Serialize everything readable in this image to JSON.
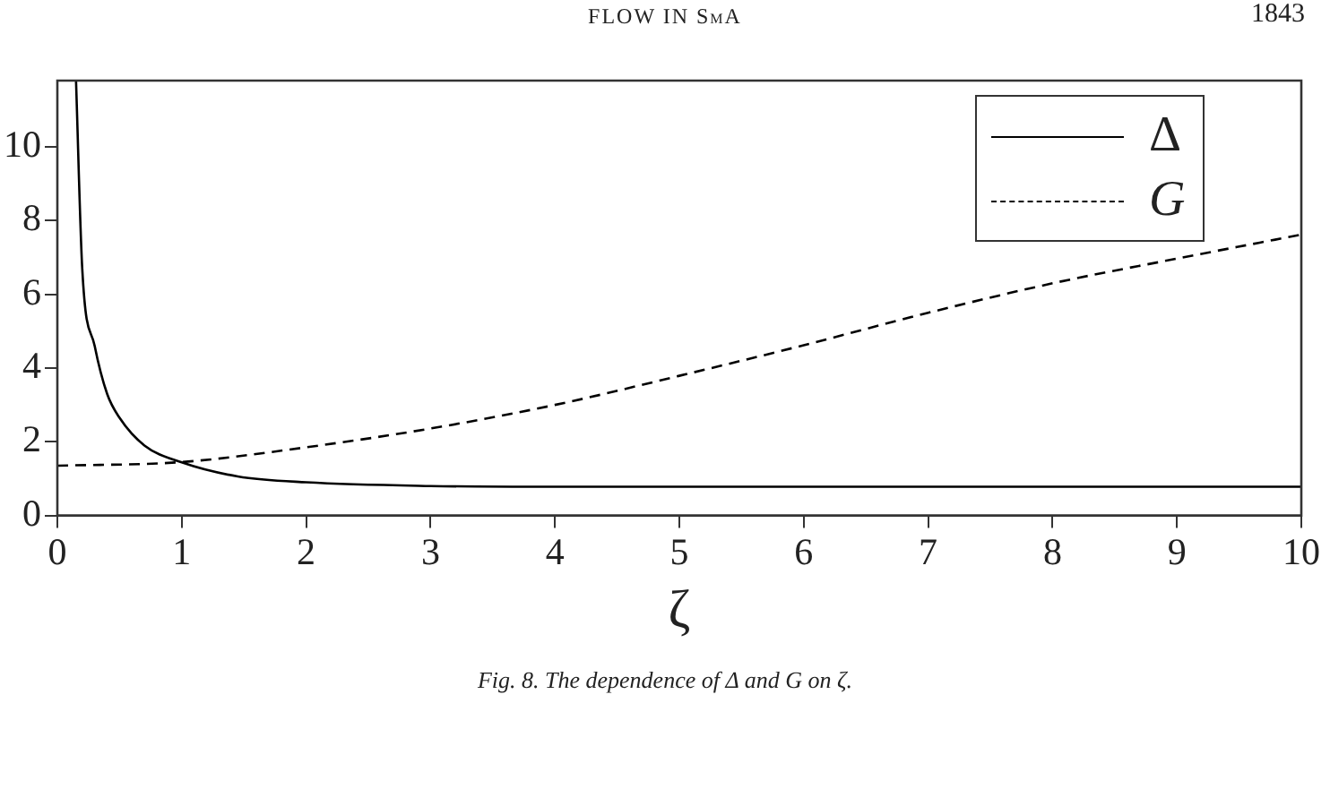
{
  "chart_data": {
    "type": "line",
    "xlabel": "ζ",
    "xlim": [
      0,
      10
    ],
    "xticks": [
      0,
      1,
      2,
      3,
      4,
      5,
      6,
      7,
      8,
      9,
      10
    ],
    "ylim": [
      0,
      11.8
    ],
    "yticks": [
      0,
      2,
      4,
      6,
      8,
      10
    ],
    "grid": false,
    "legend": "top right",
    "marker": "none",
    "annotations": [
      "FLOW IN SmA",
      "1843",
      "Fig. 8. The dependence of Δ and G on ζ."
    ],
    "series": [
      {
        "name": "Δ",
        "color": "#000000",
        "line_style": "solid",
        "x": [
          0.15,
          0.2,
          0.3,
          0.4,
          0.5,
          0.7,
          1,
          1.45,
          2,
          3,
          4,
          6,
          8,
          10
        ],
        "values": [
          11.8,
          6.7,
          4.6,
          3.3,
          2.65,
          1.9,
          1.44,
          1.06,
          0.9,
          0.8,
          0.78,
          0.78,
          0.78,
          0.78
        ]
      },
      {
        "name": "G",
        "color": "#000000",
        "line_style": "dashed",
        "x": [
          0,
          1,
          2,
          3,
          4,
          5,
          6,
          7,
          8,
          9,
          10
        ],
        "values": [
          1.35,
          1.45,
          1.85,
          2.36,
          3.0,
          3.79,
          4.62,
          5.5,
          6.3,
          6.97,
          7.62
        ]
      }
    ]
  }
}
